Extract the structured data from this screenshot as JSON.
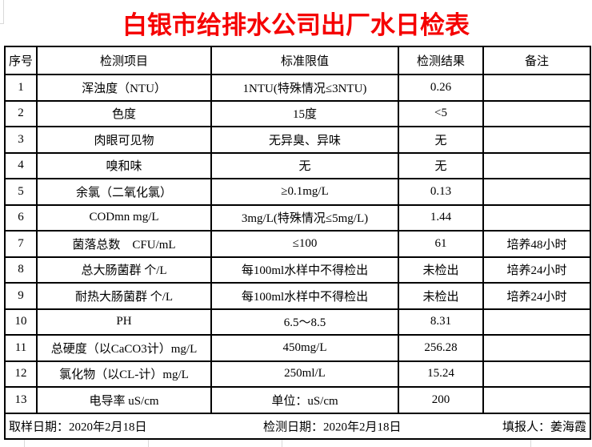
{
  "title": "白银市给排水公司出厂水日检表",
  "title_color": "#f50000",
  "table": {
    "headers": [
      "序号",
      "检测项目",
      "标准限值",
      "检测结果",
      "备注"
    ],
    "rows": [
      {
        "no": "1",
        "item": "浑浊度（NTU）",
        "limit": "1NTU(特殊情况≤3NTU)",
        "result": "0.26",
        "note": ""
      },
      {
        "no": "2",
        "item": "色度",
        "limit": "15度",
        "result": "<5",
        "note": ""
      },
      {
        "no": "3",
        "item": "肉眼可见物",
        "limit": "无异臭、异味",
        "result": "无",
        "note": ""
      },
      {
        "no": "4",
        "item": "嗅和味",
        "limit": "无",
        "result": "无",
        "note": ""
      },
      {
        "no": "5",
        "item": "余氯（二氧化氯）",
        "limit": "≥0.1mg/L",
        "result": "0.13",
        "note": ""
      },
      {
        "no": "6",
        "item": "CODmn mg/L",
        "limit": "3mg/L(特殊情况≤5mg/L)",
        "result": "1.44",
        "note": ""
      },
      {
        "no": "7",
        "item": "菌落总数　CFU/mL",
        "limit": "≤100",
        "result": "61",
        "note": "培养48小时"
      },
      {
        "no": "8",
        "item": "总大肠菌群 个/L",
        "limit": "每100ml水样中不得检出",
        "result": "未检出",
        "note": "培养24小时"
      },
      {
        "no": "9",
        "item": "耐热大肠菌群 个/L",
        "limit": "每100ml水样中不得检出",
        "result": "未检出",
        "note": "培养24小时"
      },
      {
        "no": "10",
        "item": "PH",
        "limit": "6.5～8.5",
        "result": "8.31",
        "note": ""
      },
      {
        "no": "11",
        "item": "总硬度（以CaCO3计）mg/L",
        "limit": "450mg/L",
        "result": "256.28",
        "note": ""
      },
      {
        "no": "12",
        "item": "氯化物（以CL-计）mg/L",
        "limit": "250ml/L",
        "result": "15.24",
        "note": ""
      },
      {
        "no": "13",
        "item": "电导率 uS/cm",
        "limit": "单位：uS/cm",
        "result": "200",
        "note": ""
      }
    ]
  },
  "footer": {
    "sample_date": "取样日期：2020年2月18日",
    "test_date": "检测日期：2020年2月18日",
    "reporter": "填报人：姜海霞"
  }
}
